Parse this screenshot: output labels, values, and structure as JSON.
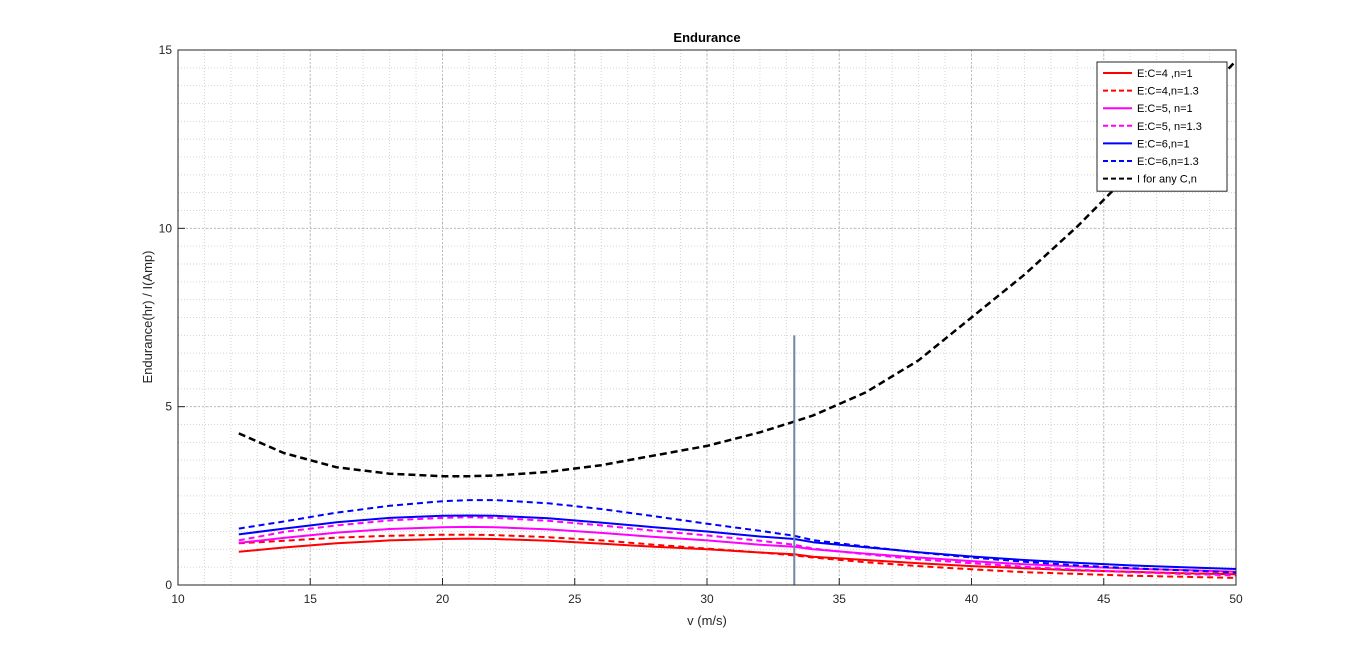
{
  "chart_data": {
    "type": "line",
    "title": "Endurance",
    "xlabel": "v (m/s)",
    "ylabel": "Endurance(hr) / I(Amp)",
    "xlim": [
      10,
      50
    ],
    "ylim": [
      0,
      15
    ],
    "xticks": [
      10,
      15,
      20,
      25,
      30,
      35,
      40,
      45,
      50
    ],
    "yticks": [
      0,
      5,
      10,
      15
    ],
    "grid": "on",
    "minor_grid": "on",
    "legend_position": "top-right",
    "x": [
      12.3,
      14,
      16,
      18,
      20,
      21,
      22,
      24,
      26,
      28,
      30,
      32,
      33.3,
      34,
      36,
      38,
      40,
      42,
      44,
      46,
      48,
      50
    ],
    "series": [
      {
        "name": "E:C=4 ,n=1",
        "color": "#ff0000",
        "dash": "solid",
        "values": [
          0.93,
          1.05,
          1.17,
          1.25,
          1.29,
          1.3,
          1.29,
          1.24,
          1.16,
          1.07,
          1.0,
          0.91,
          0.86,
          0.79,
          0.7,
          0.61,
          0.53,
          0.47,
          0.41,
          0.37,
          0.33,
          0.3
        ]
      },
      {
        "name": "E:C=4,n=1.3",
        "color": "#ff0000",
        "dash": "dashed",
        "values": [
          1.17,
          1.24,
          1.33,
          1.38,
          1.41,
          1.41,
          1.4,
          1.34,
          1.25,
          1.13,
          1.02,
          0.91,
          0.83,
          0.77,
          0.64,
          0.53,
          0.44,
          0.36,
          0.31,
          0.26,
          0.23,
          0.2
        ]
      },
      {
        "name": "E:C=5, n=1",
        "color": "#ff00ff",
        "dash": "solid",
        "values": [
          1.18,
          1.32,
          1.47,
          1.57,
          1.62,
          1.63,
          1.62,
          1.56,
          1.46,
          1.35,
          1.25,
          1.13,
          1.07,
          1.0,
          0.88,
          0.77,
          0.67,
          0.58,
          0.52,
          0.46,
          0.42,
          0.37
        ]
      },
      {
        "name": "E:C=5, n=1.3",
        "color": "#ff00ff",
        "dash": "dashed",
        "values": [
          1.25,
          1.49,
          1.67,
          1.81,
          1.88,
          1.9,
          1.88,
          1.8,
          1.67,
          1.52,
          1.39,
          1.24,
          1.13,
          1.02,
          0.86,
          0.72,
          0.61,
          0.51,
          0.43,
          0.36,
          0.31,
          0.27
        ]
      },
      {
        "name": "E:C=6,n=1",
        "color": "#0000ff",
        "dash": "solid",
        "values": [
          1.42,
          1.58,
          1.76,
          1.88,
          1.94,
          1.95,
          1.94,
          1.87,
          1.75,
          1.62,
          1.5,
          1.36,
          1.29,
          1.2,
          1.06,
          0.92,
          0.8,
          0.7,
          0.62,
          0.55,
          0.5,
          0.45
        ]
      },
      {
        "name": "E:C=6,n=1.3",
        "color": "#0000ff",
        "dash": "dashed",
        "values": [
          1.58,
          1.78,
          2.03,
          2.22,
          2.35,
          2.38,
          2.38,
          2.29,
          2.13,
          1.93,
          1.72,
          1.52,
          1.38,
          1.26,
          1.08,
          0.91,
          0.77,
          0.65,
          0.55,
          0.47,
          0.41,
          0.35
        ]
      },
      {
        "name": "I for any C,n",
        "color": "#000000",
        "dash": "dashed",
        "values": [
          4.25,
          3.7,
          3.3,
          3.12,
          3.05,
          3.05,
          3.07,
          3.17,
          3.36,
          3.63,
          3.9,
          4.28,
          4.58,
          4.75,
          5.4,
          6.3,
          7.5,
          8.7,
          10.05,
          11.55,
          13.1,
          14.7
        ]
      }
    ],
    "vertical_marker": {
      "x": 33.3,
      "y_range": [
        0,
        7
      ],
      "color": "#7285a5"
    }
  }
}
